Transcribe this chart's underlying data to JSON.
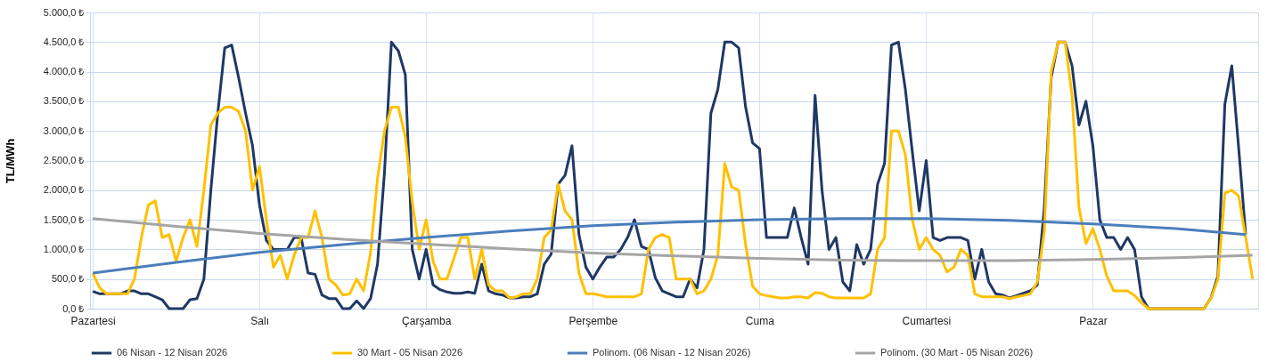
{
  "chart_data": {
    "type": "line",
    "ylabel": "TL/MWh",
    "categories": [
      "Pazartesi",
      null,
      null,
      null,
      null,
      null,
      null,
      null,
      null,
      null,
      null,
      null,
      null,
      null,
      null,
      null,
      null,
      null,
      null,
      null,
      null,
      null,
      null,
      null,
      "Salı",
      null,
      null,
      null,
      null,
      null,
      null,
      null,
      null,
      null,
      null,
      null,
      null,
      null,
      null,
      null,
      null,
      null,
      null,
      null,
      null,
      null,
      null,
      null,
      "Çarşamba",
      null,
      null,
      null,
      null,
      null,
      null,
      null,
      null,
      null,
      null,
      null,
      null,
      null,
      null,
      null,
      null,
      null,
      null,
      null,
      null,
      null,
      null,
      null,
      "Perşembe",
      null,
      null,
      null,
      null,
      null,
      null,
      null,
      null,
      null,
      null,
      null,
      null,
      null,
      null,
      null,
      null,
      null,
      null,
      null,
      null,
      null,
      null,
      null,
      "Cuma",
      null,
      null,
      null,
      null,
      null,
      null,
      null,
      null,
      null,
      null,
      null,
      null,
      null,
      null,
      null,
      null,
      null,
      null,
      null,
      null,
      null,
      null,
      null,
      "Cumartesi",
      null,
      null,
      null,
      null,
      null,
      null,
      null,
      null,
      null,
      null,
      null,
      null,
      null,
      null,
      null,
      null,
      null,
      null,
      null,
      null,
      null,
      null,
      null,
      "Pazar",
      null,
      null,
      null,
      null,
      null,
      null,
      null,
      null,
      null,
      null,
      null,
      null,
      null,
      null,
      null,
      null,
      null,
      null,
      null,
      null,
      null,
      null,
      null
    ],
    "series": [
      {
        "name": "06 Nisan - 12 Nisan 2026",
        "color": "#1f3864",
        "values": [
          290,
          250,
          250,
          250,
          250,
          300,
          300,
          250,
          250,
          200,
          150,
          0,
          0,
          0,
          150,
          170,
          500,
          2000,
          3300,
          4400,
          4450,
          3900,
          3300,
          2750,
          1750,
          1150,
          1000,
          1000,
          1000,
          1200,
          1200,
          600,
          580,
          230,
          170,
          170,
          0,
          0,
          130,
          0,
          170,
          750,
          2300,
          4500,
          4350,
          3950,
          1000,
          500,
          1000,
          400,
          320,
          280,
          260,
          260,
          280,
          260,
          750,
          300,
          250,
          230,
          180,
          180,
          200,
          200,
          250,
          750,
          920,
          2100,
          2250,
          2750,
          1250,
          700,
          500,
          700,
          870,
          870,
          1000,
          1200,
          1500,
          1050,
          1000,
          520,
          300,
          250,
          200,
          200,
          500,
          350,
          1000,
          3300,
          3700,
          4500,
          4500,
          4400,
          3400,
          2800,
          2700,
          1200,
          1200,
          1200,
          1200,
          1700,
          1200,
          750,
          3600,
          2000,
          1000,
          1200,
          450,
          300,
          1080,
          750,
          1000,
          2100,
          2450,
          4450,
          4500,
          3700,
          2650,
          1650,
          2500,
          1200,
          1150,
          1200,
          1200,
          1200,
          1150,
          500,
          1000,
          450,
          250,
          230,
          180,
          220,
          260,
          300,
          400,
          1700,
          3900,
          4500,
          4500,
          4100,
          3100,
          3500,
          2750,
          1500,
          1200,
          1200,
          1000,
          1200,
          1000,
          200,
          0,
          0,
          0,
          0,
          0,
          0,
          0,
          0,
          0,
          180,
          550,
          3450,
          4100,
          2700,
          1250,
          null
        ]
      },
      {
        "name": "30 Mart - 05 Nisan 2026",
        "color": "#ffc000",
        "values": [
          600,
          350,
          250,
          250,
          250,
          250,
          500,
          1200,
          1750,
          1820,
          1200,
          1250,
          800,
          1200,
          1500,
          1050,
          2000,
          3100,
          3300,
          3400,
          3400,
          3330,
          3000,
          2000,
          2400,
          1500,
          700,
          900,
          500,
          900,
          1200,
          1200,
          1650,
          1200,
          500,
          400,
          230,
          250,
          500,
          300,
          950,
          2200,
          3000,
          3400,
          3400,
          2900,
          1800,
          1000,
          1500,
          800,
          500,
          500,
          850,
          1200,
          1200,
          500,
          1000,
          400,
          300,
          300,
          180,
          200,
          250,
          250,
          500,
          1200,
          1330,
          2100,
          1650,
          1500,
          600,
          250,
          250,
          230,
          200,
          200,
          200,
          200,
          200,
          250,
          1000,
          1200,
          1250,
          1200,
          500,
          500,
          500,
          250,
          300,
          500,
          900,
          2450,
          2050,
          2000,
          1080,
          380,
          250,
          220,
          200,
          180,
          180,
          200,
          200,
          180,
          270,
          260,
          200,
          180,
          180,
          180,
          180,
          180,
          250,
          1000,
          1200,
          3000,
          3000,
          2600,
          1500,
          1000,
          1200,
          1000,
          900,
          620,
          700,
          1000,
          900,
          250,
          200,
          200,
          200,
          200,
          170,
          200,
          220,
          250,
          450,
          1300,
          4000,
          4500,
          4500,
          3600,
          1700,
          1100,
          1350,
          1000,
          550,
          300,
          300,
          300,
          220,
          100,
          0,
          0,
          0,
          0,
          0,
          0,
          0,
          0,
          0,
          170,
          500,
          1950,
          2000,
          1900,
          1200,
          500
        ]
      },
      {
        "name": "Polinom. (06 Nisan - 12 Nisan 2026)",
        "color": "#4a7ebb",
        "values": [
          600,
          null,
          null,
          null,
          null,
          null,
          null,
          null,
          null,
          null,
          null,
          null,
          780,
          null,
          null,
          null,
          null,
          null,
          null,
          null,
          null,
          null,
          null,
          null,
          950,
          null,
          null,
          null,
          null,
          null,
          null,
          null,
          null,
          null,
          null,
          null,
          1080,
          null,
          null,
          null,
          null,
          null,
          null,
          null,
          null,
          null,
          null,
          null,
          1200,
          null,
          null,
          null,
          null,
          null,
          null,
          null,
          null,
          null,
          null,
          null,
          1310,
          null,
          null,
          null,
          null,
          null,
          null,
          null,
          null,
          null,
          null,
          null,
          1400,
          null,
          null,
          null,
          null,
          null,
          null,
          null,
          null,
          null,
          null,
          null,
          1460,
          null,
          null,
          null,
          null,
          null,
          null,
          null,
          null,
          null,
          null,
          null,
          1500,
          null,
          null,
          null,
          null,
          null,
          null,
          null,
          null,
          null,
          null,
          null,
          1520,
          null,
          null,
          null,
          null,
          null,
          null,
          null,
          null,
          null,
          null,
          null,
          1520,
          null,
          null,
          null,
          null,
          null,
          null,
          null,
          null,
          null,
          null,
          null,
          1490,
          null,
          null,
          null,
          null,
          null,
          null,
          null,
          null,
          null,
          null,
          null,
          1430,
          null,
          null,
          null,
          null,
          null,
          null,
          null,
          null,
          null,
          null,
          null,
          1350,
          null,
          null,
          null,
          null,
          null,
          null,
          null,
          null,
          null,
          1250,
          null
        ]
      },
      {
        "name": "Polinom. (30 Mart - 05 Nisan 2026)",
        "color": "#a5a5a5",
        "values": [
          1520,
          null,
          null,
          null,
          null,
          null,
          null,
          null,
          null,
          null,
          null,
          null,
          1390,
          null,
          null,
          null,
          null,
          null,
          null,
          null,
          null,
          null,
          null,
          null,
          1270,
          null,
          null,
          null,
          null,
          null,
          null,
          null,
          null,
          null,
          null,
          null,
          1170,
          null,
          null,
          null,
          null,
          null,
          null,
          null,
          null,
          null,
          null,
          null,
          1090,
          null,
          null,
          null,
          null,
          null,
          null,
          null,
          null,
          null,
          null,
          null,
          1010,
          null,
          null,
          null,
          null,
          null,
          null,
          null,
          null,
          null,
          null,
          null,
          940,
          null,
          null,
          null,
          null,
          null,
          null,
          null,
          null,
          null,
          null,
          null,
          890,
          null,
          null,
          null,
          null,
          null,
          null,
          null,
          null,
          null,
          null,
          null,
          850,
          null,
          null,
          null,
          null,
          null,
          null,
          null,
          null,
          null,
          null,
          null,
          820,
          null,
          null,
          null,
          null,
          null,
          null,
          null,
          null,
          null,
          null,
          null,
          810,
          null,
          null,
          null,
          null,
          null,
          null,
          null,
          null,
          null,
          null,
          null,
          810,
          null,
          null,
          null,
          null,
          null,
          null,
          null,
          null,
          null,
          null,
          null,
          830,
          null,
          null,
          null,
          null,
          null,
          null,
          null,
          null,
          null,
          null,
          null,
          860,
          null,
          null,
          null,
          null,
          null,
          null,
          null,
          null,
          null,
          null,
          900
        ]
      }
    ],
    "ylim": [
      0,
      5000
    ],
    "yticks": [
      {
        "value": 0,
        "label": "0,0 ₺"
      },
      {
        "value": 500,
        "label": "500,0 ₺"
      },
      {
        "value": 1000,
        "label": "1.000,0 ₺"
      },
      {
        "value": 1500,
        "label": "1.500,0 ₺"
      },
      {
        "value": 2000,
        "label": "2.000,0 ₺"
      },
      {
        "value": 2500,
        "label": "2.500,0 ₺"
      },
      {
        "value": 3000,
        "label": "3.000,0 ₺"
      },
      {
        "value": 3500,
        "label": "3.500,0 ₺"
      },
      {
        "value": 4000,
        "label": "4.000,0 ₺"
      },
      {
        "value": 4500,
        "label": "4.500,0 ₺"
      },
      {
        "value": 5000,
        "label": "5.000,0 ₺"
      }
    ],
    "grid": true,
    "legend": "bottom",
    "marker": "none"
  }
}
